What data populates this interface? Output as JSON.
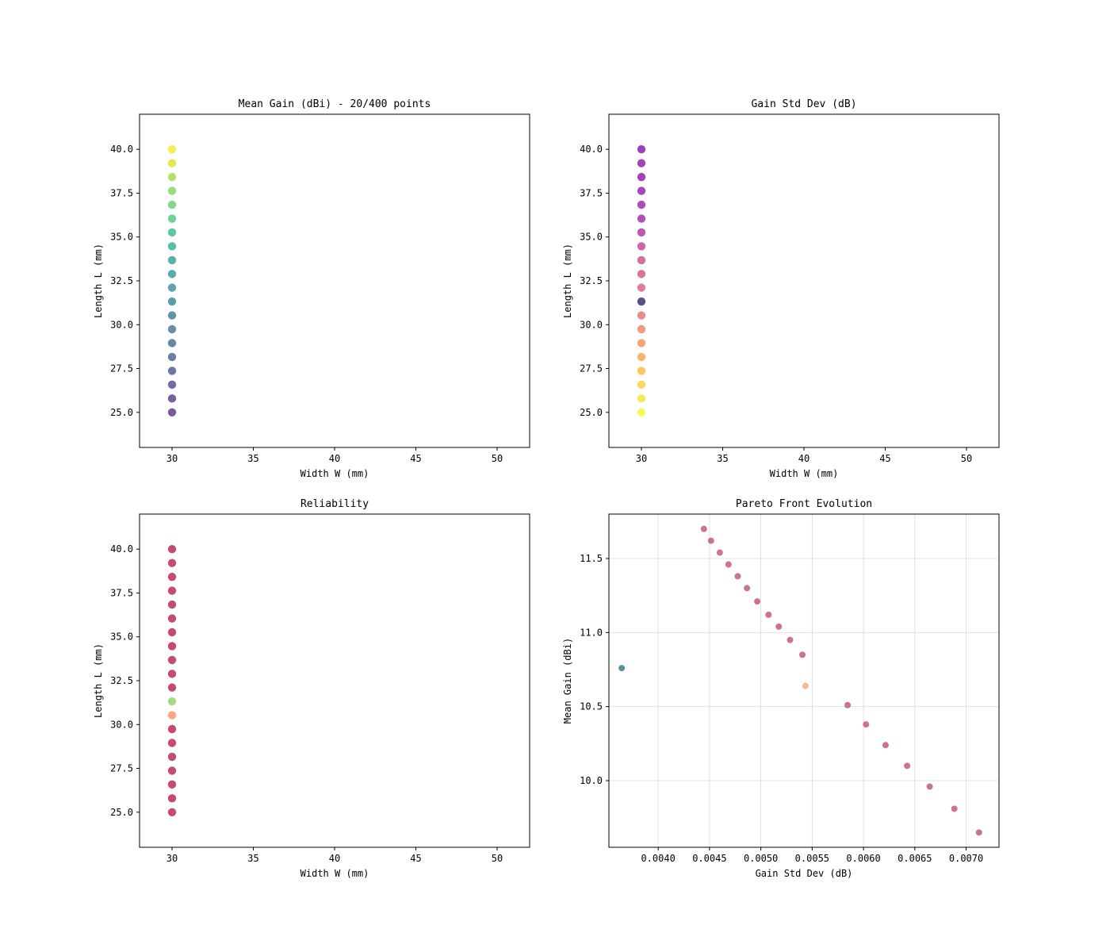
{
  "chart_data": [
    {
      "type": "scatter",
      "title": "Mean Gain (dBi) - 20/400 points",
      "xlabel": "Width W (mm)",
      "ylabel": "Length L (mm)",
      "xlim": [
        28,
        52
      ],
      "ylim": [
        23,
        42
      ],
      "xticks": [
        30,
        35,
        40,
        45,
        50
      ],
      "xtick_labels": [
        "30",
        "35",
        "40",
        "45",
        "50"
      ],
      "yticks": [
        25,
        27.5,
        30,
        32.5,
        35,
        37.5,
        40
      ],
      "ytick_labels": [
        "25.0",
        "27.5",
        "30.0",
        "32.5",
        "35.0",
        "37.5",
        "40.0"
      ],
      "grid": false,
      "colormap": "viridis",
      "points": [
        {
          "x": 30,
          "y": 25.0,
          "color": "#482475"
        },
        {
          "x": 30,
          "y": 25.79,
          "color": "#472d7b"
        },
        {
          "x": 30,
          "y": 26.58,
          "color": "#443983"
        },
        {
          "x": 30,
          "y": 27.37,
          "color": "#404688"
        },
        {
          "x": 30,
          "y": 28.16,
          "color": "#3b528b"
        },
        {
          "x": 30,
          "y": 28.95,
          "color": "#355e8d"
        },
        {
          "x": 30,
          "y": 29.74,
          "color": "#31688e"
        },
        {
          "x": 30,
          "y": 30.53,
          "color": "#2c728e"
        },
        {
          "x": 30,
          "y": 31.32,
          "color": "#287c8e"
        },
        {
          "x": 30,
          "y": 32.11,
          "color": "#24868e"
        },
        {
          "x": 30,
          "y": 32.89,
          "color": "#21918c"
        },
        {
          "x": 30,
          "y": 33.68,
          "color": "#1f9a8a"
        },
        {
          "x": 30,
          "y": 34.47,
          "color": "#22a884"
        },
        {
          "x": 30,
          "y": 35.26,
          "color": "#2fb47c"
        },
        {
          "x": 30,
          "y": 36.05,
          "color": "#44bf70"
        },
        {
          "x": 30,
          "y": 36.84,
          "color": "#5ec962"
        },
        {
          "x": 30,
          "y": 37.63,
          "color": "#7ad151"
        },
        {
          "x": 30,
          "y": 38.42,
          "color": "#9bd93c"
        },
        {
          "x": 30,
          "y": 39.21,
          "color": "#d8e219"
        },
        {
          "x": 30,
          "y": 40.0,
          "color": "#f3e51e"
        }
      ]
    },
    {
      "type": "scatter",
      "title": "Gain Std Dev (dB)",
      "xlabel": "Width W (mm)",
      "ylabel": "Length L (mm)",
      "xlim": [
        28,
        52
      ],
      "ylim": [
        23,
        42
      ],
      "xticks": [
        30,
        35,
        40,
        45,
        50
      ],
      "xtick_labels": [
        "30",
        "35",
        "40",
        "45",
        "50"
      ],
      "yticks": [
        25,
        27.5,
        30,
        32.5,
        35,
        37.5,
        40
      ],
      "ytick_labels": [
        "25.0",
        "27.5",
        "30.0",
        "32.5",
        "35.0",
        "37.5",
        "40.0"
      ],
      "grid": false,
      "colormap": "plasma",
      "points": [
        {
          "x": 30,
          "y": 25.0,
          "color": "#f0f921"
        },
        {
          "x": 30,
          "y": 25.79,
          "color": "#f7e225"
        },
        {
          "x": 30,
          "y": 26.58,
          "color": "#fcc932"
        },
        {
          "x": 30,
          "y": 27.37,
          "color": "#fdb42f"
        },
        {
          "x": 30,
          "y": 28.16,
          "color": "#fb9b3e"
        },
        {
          "x": 30,
          "y": 28.95,
          "color": "#f48849"
        },
        {
          "x": 30,
          "y": 29.74,
          "color": "#ed7953"
        },
        {
          "x": 30,
          "y": 30.53,
          "color": "#e16462"
        },
        {
          "x": 30,
          "y": 31.32,
          "color": "#2a115c"
        },
        {
          "x": 30,
          "y": 32.11,
          "color": "#d5536f"
        },
        {
          "x": 30,
          "y": 32.89,
          "color": "#cc4778"
        },
        {
          "x": 30,
          "y": 33.68,
          "color": "#c53f7e"
        },
        {
          "x": 30,
          "y": 34.47,
          "color": "#bc3587"
        },
        {
          "x": 30,
          "y": 35.26,
          "color": "#a62098"
        },
        {
          "x": 30,
          "y": 36.05,
          "color": "#9c179e"
        },
        {
          "x": 30,
          "y": 36.84,
          "color": "#9511a1"
        },
        {
          "x": 30,
          "y": 37.63,
          "color": "#8b0aa5"
        },
        {
          "x": 30,
          "y": 38.42,
          "color": "#8104a7"
        },
        {
          "x": 30,
          "y": 39.21,
          "color": "#7e03a8"
        },
        {
          "x": 30,
          "y": 40.0,
          "color": "#7a02a8"
        }
      ]
    },
    {
      "type": "scatter",
      "title": "Reliability",
      "xlabel": "Width W (mm)",
      "ylabel": "Length L (mm)",
      "xlim": [
        28,
        52
      ],
      "ylim": [
        23,
        42
      ],
      "xticks": [
        30,
        35,
        40,
        45,
        50
      ],
      "xtick_labels": [
        "30",
        "35",
        "40",
        "45",
        "50"
      ],
      "yticks": [
        25,
        27.5,
        30,
        32.5,
        35,
        37.5,
        40
      ],
      "ytick_labels": [
        "25.0",
        "27.5",
        "30.0",
        "32.5",
        "35.0",
        "37.5",
        "40.0"
      ],
      "grid": false,
      "colormap": "Spectral",
      "points": [
        {
          "x": 30,
          "y": 25.0,
          "color": "#b0123f"
        },
        {
          "x": 30,
          "y": 25.79,
          "color": "#b0123f"
        },
        {
          "x": 30,
          "y": 26.58,
          "color": "#b0123f"
        },
        {
          "x": 30,
          "y": 27.37,
          "color": "#b0123f"
        },
        {
          "x": 30,
          "y": 28.16,
          "color": "#b0123f"
        },
        {
          "x": 30,
          "y": 28.95,
          "color": "#b0123f"
        },
        {
          "x": 30,
          "y": 29.74,
          "color": "#b0123f"
        },
        {
          "x": 30,
          "y": 30.53,
          "color": "#f88d52"
        },
        {
          "x": 30,
          "y": 31.32,
          "color": "#86cf5e"
        },
        {
          "x": 30,
          "y": 32.11,
          "color": "#b0123f"
        },
        {
          "x": 30,
          "y": 32.89,
          "color": "#b0123f"
        },
        {
          "x": 30,
          "y": 33.68,
          "color": "#b0123f"
        },
        {
          "x": 30,
          "y": 34.47,
          "color": "#b0123f"
        },
        {
          "x": 30,
          "y": 35.26,
          "color": "#b0123f"
        },
        {
          "x": 30,
          "y": 36.05,
          "color": "#b0123f"
        },
        {
          "x": 30,
          "y": 36.84,
          "color": "#b0123f"
        },
        {
          "x": 30,
          "y": 37.63,
          "color": "#b0123f"
        },
        {
          "x": 30,
          "y": 38.42,
          "color": "#b0123f"
        },
        {
          "x": 30,
          "y": 39.21,
          "color": "#b0123f"
        },
        {
          "x": 30,
          "y": 40.0,
          "color": "#b0123f"
        }
      ]
    },
    {
      "type": "scatter",
      "title": "Pareto Front Evolution",
      "xlabel": "Gain Std Dev (dB)",
      "ylabel": "Mean Gain (dBi)",
      "xlim": [
        0.00352,
        0.00732
      ],
      "ylim": [
        9.55,
        11.8
      ],
      "xticks": [
        0.0035,
        0.004,
        0.0045,
        0.005,
        0.0055,
        0.006,
        0.0065,
        0.007
      ],
      "xtick_labels": [
        "0.0035",
        "0.0040",
        "0.0045",
        "0.0050",
        "0.0055",
        "0.0060",
        "0.0065",
        "0.0070"
      ],
      "yticks": [
        10.0,
        10.5,
        11.0,
        11.5
      ],
      "ytick_labels": [
        "10.0",
        "10.5",
        "11.0",
        "11.5"
      ],
      "grid": true,
      "colormap": "plasma",
      "points": [
        {
          "x": 0.003645,
          "y": 10.76,
          "color": "#2a6f7a"
        },
        {
          "x": 0.004445,
          "y": 11.7,
          "color": "#b9456e"
        },
        {
          "x": 0.004515,
          "y": 11.62,
          "color": "#b9456e"
        },
        {
          "x": 0.0046,
          "y": 11.54,
          "color": "#b9456e"
        },
        {
          "x": 0.004685,
          "y": 11.46,
          "color": "#b9456e"
        },
        {
          "x": 0.004775,
          "y": 11.38,
          "color": "#b9456e"
        },
        {
          "x": 0.004865,
          "y": 11.3,
          "color": "#b9456e"
        },
        {
          "x": 0.004965,
          "y": 11.21,
          "color": "#b9456e"
        },
        {
          "x": 0.005075,
          "y": 11.12,
          "color": "#b9456e"
        },
        {
          "x": 0.005175,
          "y": 11.04,
          "color": "#b9456e"
        },
        {
          "x": 0.005285,
          "y": 10.95,
          "color": "#b9456e"
        },
        {
          "x": 0.005405,
          "y": 10.85,
          "color": "#b9456e"
        },
        {
          "x": 0.005435,
          "y": 10.64,
          "color": "#f0a07a"
        },
        {
          "x": 0.005845,
          "y": 10.51,
          "color": "#b9456e"
        },
        {
          "x": 0.006025,
          "y": 10.38,
          "color": "#b9456e"
        },
        {
          "x": 0.006215,
          "y": 10.24,
          "color": "#b9456e"
        },
        {
          "x": 0.006425,
          "y": 10.1,
          "color": "#b9456e"
        },
        {
          "x": 0.006645,
          "y": 9.96,
          "color": "#b9456e"
        },
        {
          "x": 0.006885,
          "y": 9.81,
          "color": "#b9456e"
        },
        {
          "x": 0.007125,
          "y": 9.65,
          "color": "#b9456e"
        }
      ]
    }
  ]
}
